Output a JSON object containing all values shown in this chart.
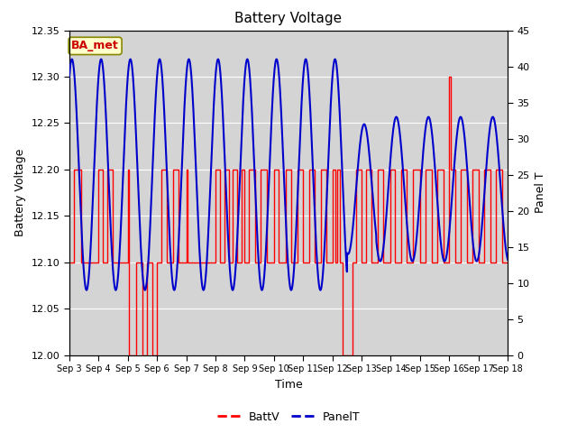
{
  "title": "Battery Voltage",
  "xlabel": "Time",
  "ylabel_left": "Battery Voltage",
  "ylabel_right": "Panel T",
  "ylim_left": [
    12.0,
    12.35
  ],
  "ylim_right": [
    0,
    45
  ],
  "yticks_left": [
    12.0,
    12.05,
    12.1,
    12.15,
    12.2,
    12.25,
    12.3,
    12.35
  ],
  "yticks_right": [
    0,
    5,
    10,
    15,
    20,
    25,
    30,
    35,
    40,
    45
  ],
  "bg_color": "#e0e0e0",
  "bg_inner_color": "#d4d4d4",
  "fig_color": "#ffffff",
  "annotation_text": "BA_met",
  "annotation_color": "#cc0000",
  "annotation_bg": "#ffffcc",
  "annotation_border": "#888800",
  "battv_color": "#ff0000",
  "panelt_color": "#0000cc",
  "x_tick_labels": [
    "Sep 3",
    "Sep 4",
    "Sep 5",
    "Sep 6",
    "Sep 7",
    "Sep 8",
    "Sep 9",
    "Sep 10",
    "Sep 11",
    "Sep 12",
    "Sep 13",
    "Sep 14",
    "Sep 15",
    "Sep 16",
    "Sep 17",
    "Sep 18"
  ],
  "grid_color": "#ffffff",
  "legend_dash_color_battv": "#ff0000",
  "legend_dash_color_panelt": "#0000cc"
}
